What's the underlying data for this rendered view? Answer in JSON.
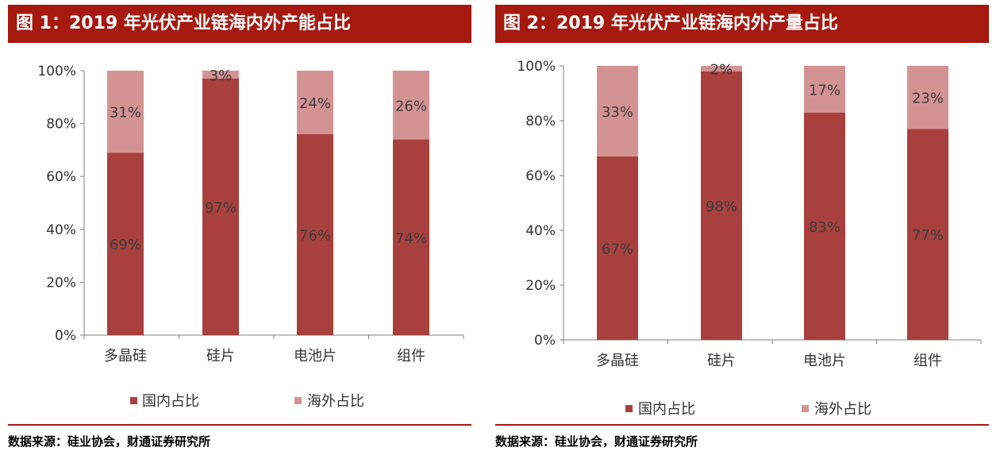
{
  "colors": {
    "title_bg": "#a5190f",
    "domestic": "#a8403e",
    "overseas": "#d49393",
    "axis": "#7f7f7f"
  },
  "source_text": "数据来源：硅业协会，财通证券研究所",
  "chart_data": [
    {
      "type": "bar",
      "stacked": true,
      "title": "图 1：2019 年光伏产业链海内外产能占比",
      "categories": [
        "多晶硅",
        "硅片",
        "电池片",
        "组件"
      ],
      "series": [
        {
          "name": "国内占比",
          "values": [
            69,
            97,
            76,
            74
          ],
          "labels": [
            "69%",
            "97%",
            "76%",
            "74%"
          ]
        },
        {
          "name": "海外占比",
          "values": [
            31,
            3,
            24,
            26
          ],
          "labels": [
            "31%",
            "3%",
            "24%",
            "26%"
          ]
        }
      ],
      "ylim": [
        0,
        100
      ],
      "yticks": [
        "0%",
        "20%",
        "40%",
        "60%",
        "80%",
        "100%"
      ],
      "legend_position": "bottom",
      "grid": false
    },
    {
      "type": "bar",
      "stacked": true,
      "title": "图 2：2019 年光伏产业链海内外产量占比",
      "categories": [
        "多晶硅",
        "硅片",
        "电池片",
        "组件"
      ],
      "series": [
        {
          "name": "国内占比",
          "values": [
            67,
            98,
            83,
            77
          ],
          "labels": [
            "67%",
            "98%",
            "83%",
            "77%"
          ]
        },
        {
          "name": "海外占比",
          "values": [
            33,
            2,
            17,
            23
          ],
          "labels": [
            "33%",
            "2%",
            "17%",
            "23%"
          ]
        }
      ],
      "ylim": [
        0,
        100
      ],
      "yticks": [
        "0%",
        "20%",
        "40%",
        "60%",
        "80%",
        "100%"
      ],
      "legend_position": "bottom",
      "grid": false
    }
  ]
}
